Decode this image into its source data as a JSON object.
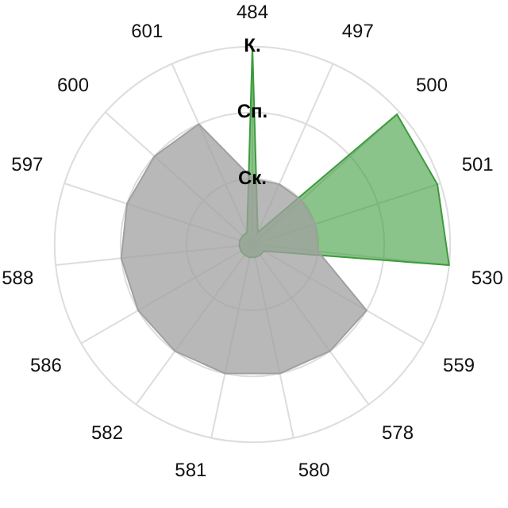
{
  "chart_data": {
    "type": "radar",
    "categories": [
      "484",
      "497",
      "500",
      "501",
      "530",
      "559",
      "578",
      "580",
      "581",
      "582",
      "586",
      "588",
      "597",
      "600",
      "601"
    ],
    "series": [
      {
        "color": "#a0a0a0",
        "values": [
          1,
          1,
          1,
          1,
          1,
          2,
          2,
          2,
          2,
          2,
          2,
          2,
          2,
          2,
          2
        ]
      },
      {
        "color": "#3c9c3c",
        "values": [
          3,
          0.2,
          2.95,
          2.95,
          3,
          0.2,
          0.2,
          0.2,
          0.2,
          0.2,
          0.2,
          0.2,
          0.2,
          0.2,
          0.2
        ]
      }
    ],
    "ylim": [
      0,
      3
    ],
    "yticks": [
      {
        "value": 1,
        "label": "Ск."
      },
      {
        "value": 2,
        "label": "Сп."
      },
      {
        "value": 3,
        "label": "К."
      }
    ],
    "grid": true,
    "legend": false,
    "marker": "none"
  }
}
